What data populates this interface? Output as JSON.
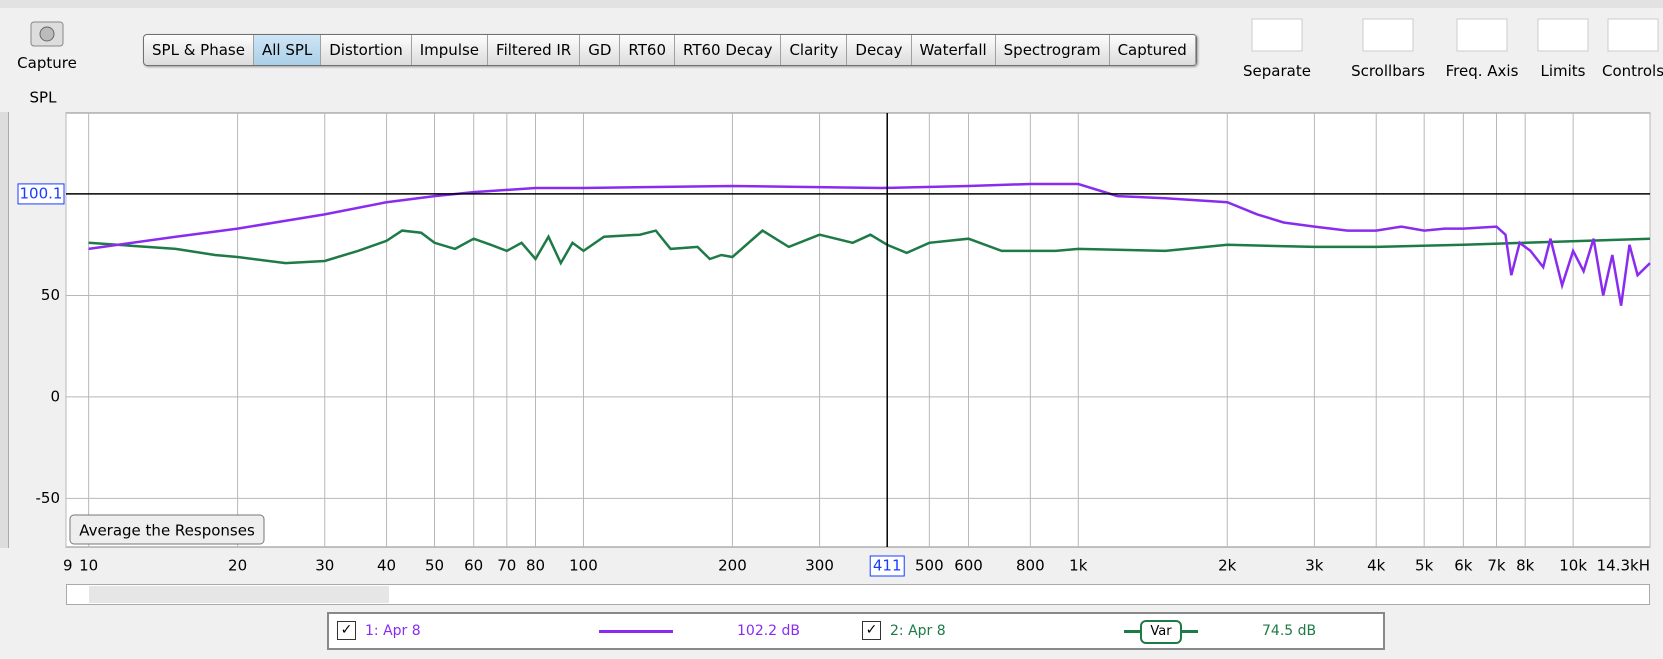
{
  "capture": "Capture",
  "toolbar": {
    "tabs": [
      "SPL & Phase",
      "All SPL",
      "Distortion",
      "Impulse",
      "Filtered IR",
      "GD",
      "RT60",
      "RT60 Decay",
      "Clarity",
      "Decay",
      "Waterfall",
      "Spectrogram",
      "Captured"
    ],
    "selected": "All SPL"
  },
  "tools": [
    "Separate",
    "Scrollbars",
    "Freq. Axis",
    "Limits",
    "Controls"
  ],
  "chart_data": {
    "type": "line",
    "y_axis_label": "SPL",
    "xscale": "log",
    "xlim": [
      9,
      14300
    ],
    "ylim": [
      -74,
      140
    ],
    "xticks": [
      9,
      10,
      20,
      30,
      40,
      50,
      60,
      70,
      80,
      100,
      200,
      300,
      500,
      600,
      800,
      {
        "value": 1000,
        "label": "1k"
      },
      {
        "value": 2000,
        "label": "2k"
      },
      {
        "value": 3000,
        "label": "3k"
      },
      {
        "value": 4000,
        "label": "4k"
      },
      {
        "value": 5000,
        "label": "5k"
      },
      {
        "value": 6000,
        "label": "6k"
      },
      {
        "value": 7000,
        "label": "7k"
      },
      {
        "value": 8000,
        "label": "8k"
      },
      {
        "value": 10000,
        "label": "10k"
      },
      {
        "value": 14300,
        "label": "14.3kH"
      }
    ],
    "yticks": [
      -50,
      0,
      50
    ],
    "grid": true,
    "cursor": {
      "x": 411,
      "y": 100.1
    },
    "button": "Average the Responses",
    "series": [
      {
        "name": "1: Apr 8",
        "color": "#8a2cf0",
        "readout": "102.2 dB",
        "x": [
          10,
          15,
          20,
          30,
          40,
          50,
          60,
          80,
          100,
          200,
          400,
          600,
          800,
          1000,
          1200,
          1500,
          2000,
          2300,
          2600,
          3000,
          3500,
          4000,
          4500,
          5000,
          5500,
          6000,
          7000,
          7300,
          7500,
          7800,
          8200,
          8700,
          9000,
          9500,
          10000,
          10500,
          11000,
          11500,
          12000,
          12500,
          13000,
          13500,
          14300
        ],
        "values": [
          73,
          79,
          83,
          90,
          96,
          99,
          101,
          103,
          103,
          104,
          103,
          104,
          105,
          105,
          99,
          98,
          96,
          90,
          86,
          84,
          82,
          82,
          84,
          82,
          83,
          83,
          84,
          80,
          60,
          76,
          72,
          64,
          78,
          55,
          72,
          62,
          78,
          50,
          70,
          45,
          75,
          60,
          66
        ]
      },
      {
        "name": "2: Apr 8",
        "color": "#1e7a46",
        "readout": "74.5 dB",
        "legend_tag": "Var",
        "x": [
          10,
          15,
          18,
          20,
          25,
          30,
          35,
          40,
          43,
          47,
          50,
          55,
          60,
          65,
          70,
          75,
          80,
          85,
          90,
          95,
          100,
          110,
          130,
          140,
          150,
          170,
          180,
          190,
          200,
          230,
          260,
          300,
          350,
          380,
          411,
          450,
          500,
          600,
          700,
          900,
          1000,
          1500,
          2000,
          3000,
          4000,
          6000,
          8000,
          14300
        ],
        "values": [
          76,
          73,
          70,
          69,
          66,
          67,
          72,
          77,
          82,
          81,
          76,
          73,
          78,
          75,
          72,
          76,
          68,
          79,
          66,
          76,
          72,
          79,
          80,
          82,
          73,
          74,
          68,
          70,
          69,
          82,
          74,
          80,
          76,
          80,
          75,
          71,
          76,
          78,
          72,
          72,
          73,
          72,
          75,
          74,
          74,
          75,
          76,
          78
        ]
      }
    ]
  }
}
